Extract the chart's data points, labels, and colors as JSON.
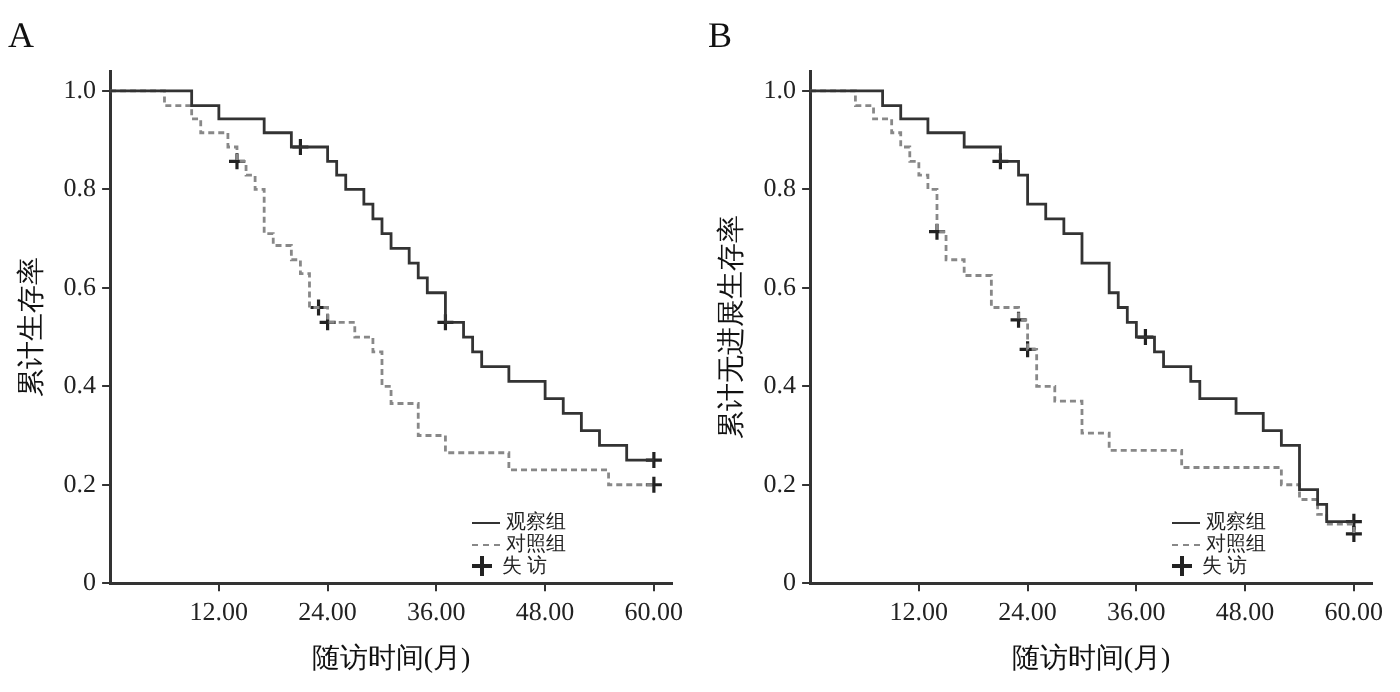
{
  "chart_data": [
    {
      "type": "step",
      "title": "A",
      "xlabel": "随访时间(月)",
      "ylabel": "累计生存率",
      "xlim": [
        0,
        62
      ],
      "xticks": [
        {
          "value": 12,
          "label": "12.00"
        },
        {
          "value": 24,
          "label": "24.00"
        },
        {
          "value": 36,
          "label": "36.00"
        },
        {
          "value": 48,
          "label": "48.00"
        },
        {
          "value": 60,
          "label": "60.00"
        }
      ],
      "ylim": [
        0,
        1.04
      ],
      "yticks": [
        0,
        0.2,
        0.4,
        0.6,
        0.8,
        {
          "value": 1,
          "label": "1.0"
        }
      ],
      "grid": false,
      "legend": "bottom right",
      "series": [
        {
          "name": "观察组",
          "color": "#333333",
          "line_style": "solid",
          "x": [
            0,
            9,
            12,
            17,
            20,
            24,
            25,
            26,
            28,
            29,
            30,
            31,
            33,
            34,
            35,
            37,
            39,
            40,
            41,
            44,
            48,
            50,
            52,
            54,
            57,
            60
          ],
          "values": [
            1,
            0.97,
            0.943,
            0.915,
            0.886,
            0.857,
            0.829,
            0.8,
            0.77,
            0.74,
            0.71,
            0.68,
            0.65,
            0.62,
            0.59,
            0.53,
            0.5,
            0.47,
            0.44,
            0.41,
            0.375,
            0.345,
            0.31,
            0.28,
            0.25,
            0.25
          ]
        },
        {
          "name": "对照组",
          "color": "#888888",
          "line_style": "dashed",
          "x": [
            0,
            6,
            9,
            10,
            13,
            14,
            15,
            16,
            17,
            18,
            20,
            21,
            22,
            24,
            27,
            29,
            30,
            31,
            34,
            37,
            44,
            55,
            60
          ],
          "values": [
            1,
            0.97,
            0.943,
            0.915,
            0.886,
            0.857,
            0.829,
            0.8,
            0.71,
            0.686,
            0.657,
            0.629,
            0.56,
            0.53,
            0.5,
            0.47,
            0.4,
            0.365,
            0.3,
            0.265,
            0.23,
            0.2,
            0.2
          ]
        },
        {
          "name": "失 访",
          "type": "scatter",
          "marker": "cross",
          "color": "#222222",
          "x": [
            21,
            37,
            60,
            14,
            23,
            24,
            60
          ],
          "values": [
            0.886,
            0.53,
            0.25,
            0.857,
            0.56,
            0.53,
            0.2
          ]
        }
      ]
    },
    {
      "type": "step",
      "title": "B",
      "xlabel": "随访时间(月)",
      "ylabel": "累计无进展生存率",
      "xlim": [
        0,
        62
      ],
      "xticks": [
        {
          "value": 12,
          "label": "12.00"
        },
        {
          "value": 24,
          "label": "24.00"
        },
        {
          "value": 36,
          "label": "36.00"
        },
        {
          "value": 48,
          "label": "48.00"
        },
        {
          "value": 60,
          "label": "60.00"
        }
      ],
      "ylim": [
        0,
        1.04
      ],
      "yticks": [
        0,
        0.2,
        0.4,
        0.6,
        0.8,
        {
          "value": 1,
          "label": "1.0"
        }
      ],
      "grid": false,
      "legend": "bottom right",
      "series": [
        {
          "name": "观察组",
          "color": "#333333",
          "line_style": "solid",
          "x": [
            0,
            8,
            10,
            13,
            17,
            21,
            23,
            24,
            26,
            28,
            30,
            33,
            34,
            35,
            36,
            38,
            39,
            42,
            43,
            47,
            50,
            52,
            54,
            56,
            57,
            60
          ],
          "values": [
            1,
            0.97,
            0.943,
            0.915,
            0.886,
            0.857,
            0.829,
            0.77,
            0.74,
            0.71,
            0.65,
            0.59,
            0.56,
            0.53,
            0.5,
            0.47,
            0.44,
            0.41,
            0.375,
            0.345,
            0.31,
            0.28,
            0.19,
            0.16,
            0.125,
            0.125
          ]
        },
        {
          "name": "对照组",
          "color": "#888888",
          "line_style": "dashed",
          "x": [
            0,
            5,
            7,
            9,
            10,
            11,
            12,
            13,
            14,
            15,
            17,
            20,
            23,
            24,
            25,
            27,
            30,
            33,
            41,
            52,
            54,
            56,
            57,
            60
          ],
          "values": [
            1,
            0.97,
            0.943,
            0.915,
            0.886,
            0.857,
            0.829,
            0.8,
            0.714,
            0.657,
            0.625,
            0.56,
            0.535,
            0.475,
            0.4,
            0.37,
            0.305,
            0.27,
            0.235,
            0.2,
            0.17,
            0.14,
            0.12,
            0.1
          ]
        },
        {
          "name": "失 访",
          "type": "scatter",
          "marker": "cross",
          "color": "#222222",
          "x": [
            21,
            37,
            60,
            14,
            23,
            24,
            60
          ],
          "values": [
            0.857,
            0.5,
            0.125,
            0.714,
            0.535,
            0.475,
            0.1
          ]
        }
      ]
    }
  ]
}
